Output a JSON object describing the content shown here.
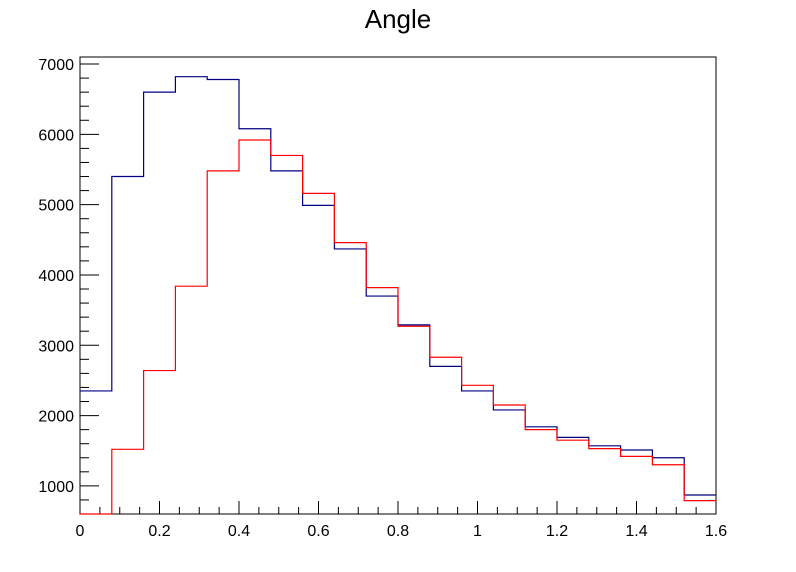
{
  "chart_data": {
    "type": "histogram",
    "title": "Angle",
    "xlabel": "",
    "ylabel": "",
    "xlim": [
      0,
      1.6
    ],
    "ylim": [
      600,
      7100
    ],
    "bin_width": 0.08,
    "x_ticks": [
      0,
      0.2,
      0.4,
      0.6,
      0.8,
      1,
      1.2,
      1.4,
      1.6
    ],
    "x_tick_labels": [
      "0",
      "0.2",
      "0.4",
      "0.6",
      "0.8",
      "1",
      "1.2",
      "1.4",
      "1.6"
    ],
    "y_ticks": [
      1000,
      2000,
      3000,
      4000,
      5000,
      6000,
      7000
    ],
    "y_tick_labels": [
      "1000",
      "2000",
      "3000",
      "4000",
      "5000",
      "6000",
      "7000"
    ],
    "series": [
      {
        "name": "blue",
        "color": "#000080",
        "bin_edges": [
          0,
          0.08,
          0.16,
          0.24,
          0.32,
          0.4,
          0.48,
          0.56,
          0.64,
          0.72,
          0.8,
          0.88,
          0.96,
          1.04,
          1.12,
          1.2,
          1.28,
          1.36,
          1.44,
          1.52,
          1.6
        ],
        "values": [
          2350,
          5400,
          6600,
          6820,
          6780,
          6080,
          5480,
          4990,
          4370,
          3700,
          3290,
          2700,
          2350,
          2080,
          1840,
          1690,
          1570,
          1510,
          1400,
          870
        ]
      },
      {
        "name": "red",
        "color": "#ff0000",
        "bin_edges": [
          0,
          0.08,
          0.16,
          0.24,
          0.32,
          0.4,
          0.48,
          0.56,
          0.64,
          0.72,
          0.8,
          0.88,
          0.96,
          1.04,
          1.12,
          1.2,
          1.28,
          1.36,
          1.44,
          1.52,
          1.6
        ],
        "values": [
          590,
          1520,
          2640,
          3840,
          5480,
          5920,
          5700,
          5160,
          4460,
          3820,
          3270,
          2830,
          2430,
          2150,
          1800,
          1650,
          1530,
          1420,
          1300,
          790
        ]
      }
    ]
  }
}
